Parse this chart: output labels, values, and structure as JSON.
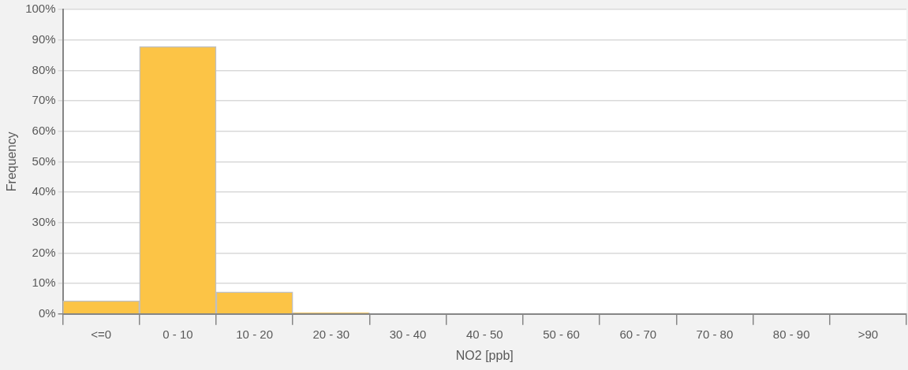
{
  "chart_data": {
    "type": "bar",
    "xlabel": "NO2 [ppb]",
    "ylabel": "Frequency",
    "categories": [
      "<=0",
      "0 - 10",
      "10 - 20",
      "20 - 30",
      "30 - 40",
      "40 - 50",
      "50 - 60",
      "60 - 70",
      "70 - 80",
      "80 - 90",
      ">90"
    ],
    "values": [
      4.3,
      87.8,
      7.2,
      0.4,
      0,
      0,
      0,
      0,
      0,
      0,
      0
    ],
    "color": "#fcc446",
    "ylim": [
      0,
      100
    ],
    "yticks": [
      {
        "value": 0,
        "label": "0%"
      },
      {
        "value": 10,
        "label": "10%"
      },
      {
        "value": 20,
        "label": "20%"
      },
      {
        "value": 30,
        "label": "30%"
      },
      {
        "value": 40,
        "label": "40%"
      },
      {
        "value": 50,
        "label": "50%"
      },
      {
        "value": 60,
        "label": "60%"
      },
      {
        "value": 70,
        "label": "70%"
      },
      {
        "value": 80,
        "label": "80%"
      },
      {
        "value": 90,
        "label": "90%"
      },
      {
        "value": 100,
        "label": "100%"
      }
    ],
    "grid": "y",
    "legend": false
  }
}
